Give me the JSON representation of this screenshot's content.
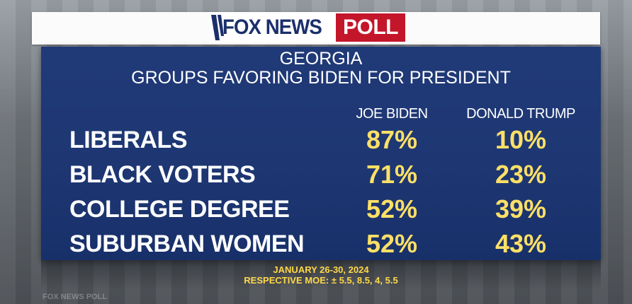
{
  "logo": {
    "brand": "FOX NEWS",
    "suffix": "POLL",
    "brand_color": "#1b2f6b",
    "suffix_color": "#c4162a"
  },
  "title": {
    "line1": "GEORGIA",
    "line2": "GROUPS FAVORING BIDEN FOR PRESIDENT"
  },
  "columns": {
    "biden": "JOE BIDEN",
    "trump": "DONALD TRUMP"
  },
  "rows": [
    {
      "label": "LIBERALS",
      "biden": "87%",
      "trump": "10%"
    },
    {
      "label": "BLACK VOTERS",
      "biden": "71%",
      "trump": "23%"
    },
    {
      "label": "COLLEGE DEGREE",
      "biden": "52%",
      "trump": "39%"
    },
    {
      "label": "SUBURBAN WOMEN",
      "biden": "52%",
      "trump": "43%"
    }
  ],
  "footer": {
    "dates": "JANUARY 26-30, 2024",
    "moe": "RESPECTIVE MOE: ± 5.5, 8.5, 4, 5.5"
  },
  "background_watermark": "FOX NEWS POLL",
  "colors": {
    "panel": "#1e3773",
    "value_text": "#ffe066",
    "footer_text": "#ffd84a"
  }
}
